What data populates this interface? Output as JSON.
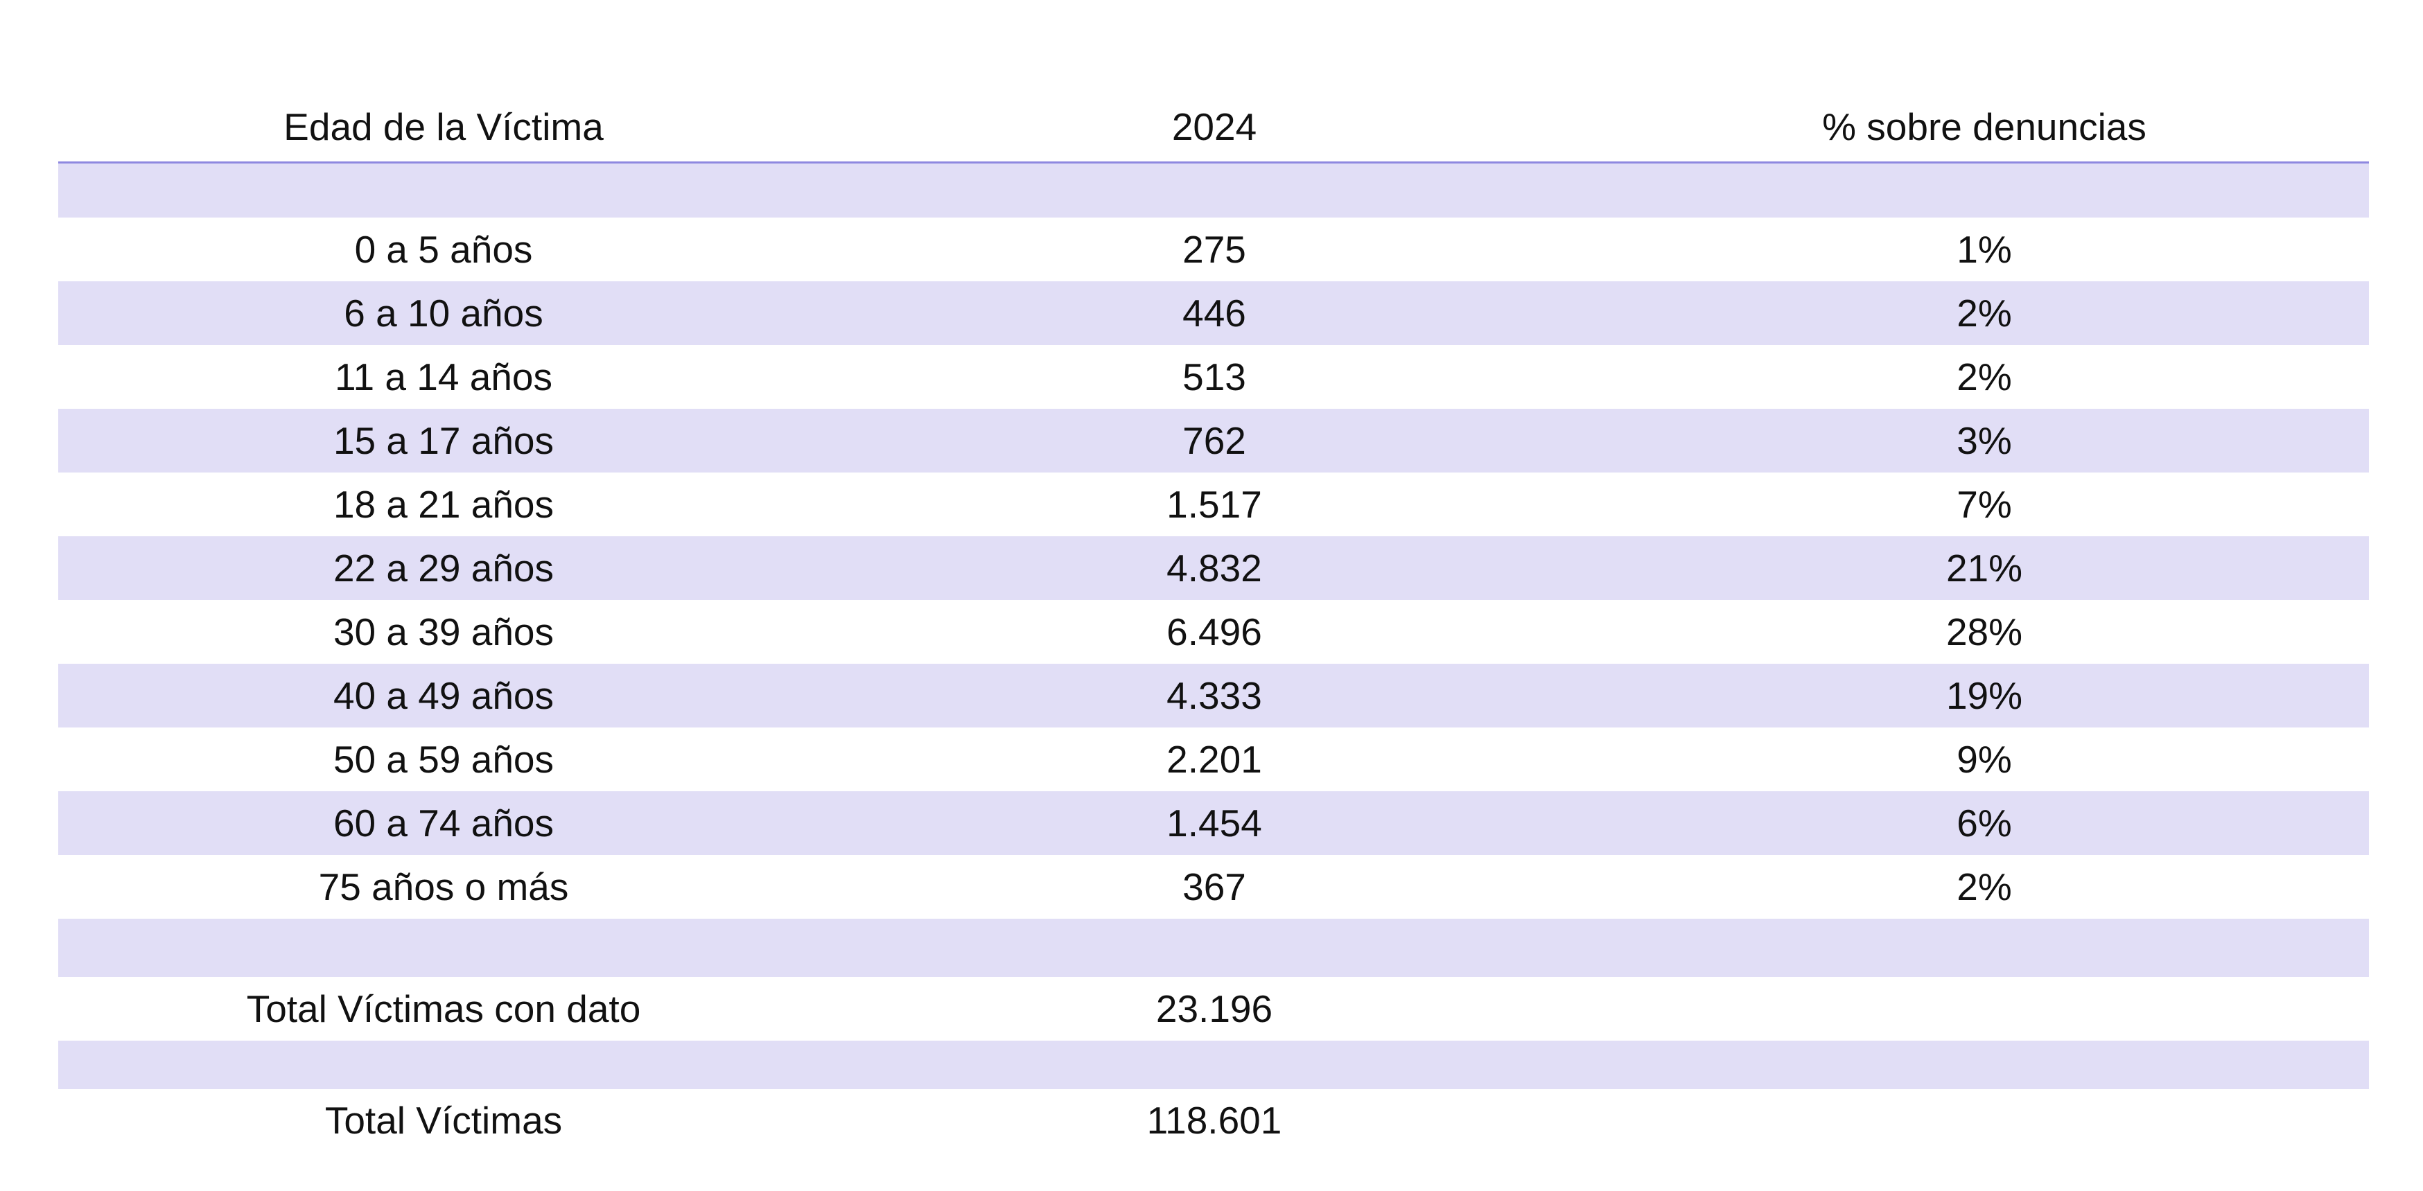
{
  "table": {
    "headers": {
      "age": "Edad de la Víctima",
      "year": "2024",
      "percent": "% sobre denuncias"
    },
    "rows": [
      {
        "age": "0 a 5 años",
        "value": "275",
        "percent": "1%"
      },
      {
        "age": "6 a 10 años",
        "value": "446",
        "percent": "2%"
      },
      {
        "age": "11 a 14 años",
        "value": "513",
        "percent": "2%"
      },
      {
        "age": "15 a 17 años",
        "value": "762",
        "percent": "3%"
      },
      {
        "age": "18 a 21 años",
        "value": "1.517",
        "percent": "7%"
      },
      {
        "age": "22 a 29 años",
        "value": "4.832",
        "percent": "21%"
      },
      {
        "age": "30 a 39 años",
        "value": "6.496",
        "percent": "28%"
      },
      {
        "age": "40 a 49 años",
        "value": "4.333",
        "percent": "19%"
      },
      {
        "age": "50 a 59 años",
        "value": "2.201",
        "percent": "9%"
      },
      {
        "age": "60 a 74 años",
        "value": "1.454",
        "percent": "6%"
      },
      {
        "age": "75 años o más",
        "value": "367",
        "percent": "2%"
      }
    ],
    "total_with_data": {
      "label": "Total Víctimas con dato",
      "value": "23.196"
    },
    "total": {
      "label": "Total Víctimas",
      "value": "118.601"
    }
  },
  "colors": {
    "band": "#e1def6",
    "header_rule": "#8e88e0"
  }
}
